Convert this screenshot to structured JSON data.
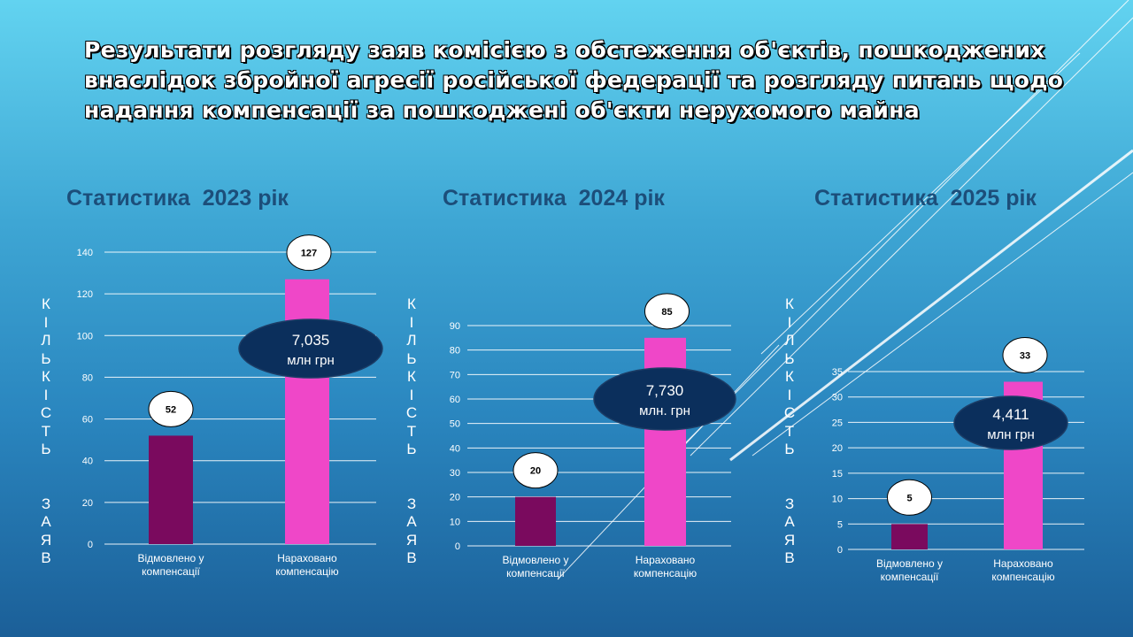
{
  "title": "Результати розгляду заяв комісією з обстеження об'єктів, пошкоджених внаслідок збройної агресії російської федерації та розгляду питань щодо надання компенсації за пошкоджені об'єкти нерухомого майна",
  "y_axis_label": "КІЛЬКІСТЬ ЗАЯВ",
  "colors": {
    "refused": "#7a0a5e",
    "accrued": "#ef47c8",
    "oval": "#0b2f5c"
  },
  "chart_data": [
    {
      "type": "bar",
      "title": "Статистика  2023 рік",
      "categories": [
        "Відмовлено у компенсації",
        "Нараховано компенсацію"
      ],
      "values": [
        52,
        127
      ],
      "ylim": [
        0,
        140
      ],
      "yticks": [
        0,
        20,
        40,
        60,
        80,
        100,
        120,
        140
      ],
      "annotation": [
        "7,035",
        "млн грн"
      ],
      "ylabel": "КІЛЬКІСТЬ ЗАЯВ"
    },
    {
      "type": "bar",
      "title": "Статистика  2024 рік",
      "categories": [
        "Відмовлено у компенсації",
        "Нараховано компенсацію"
      ],
      "values": [
        20,
        85
      ],
      "ylim": [
        0,
        90
      ],
      "yticks": [
        0,
        10,
        20,
        30,
        40,
        50,
        60,
        70,
        80,
        90
      ],
      "annotation": [
        "7,730",
        "млн. грн"
      ],
      "ylabel": "КІЛЬКІСТЬ ЗАЯВ"
    },
    {
      "type": "bar",
      "title": "Статистика  2025 рік",
      "categories": [
        "Відмовлено у компенсації",
        "Нараховано компенсацію"
      ],
      "values": [
        5,
        33
      ],
      "ylim": [
        0,
        35
      ],
      "yticks": [
        0,
        5,
        10,
        15,
        20,
        25,
        30,
        35
      ],
      "annotation": [
        "4,411",
        "млн грн"
      ],
      "ylabel": "КІЛЬКІСТЬ ЗАЯВ"
    }
  ]
}
